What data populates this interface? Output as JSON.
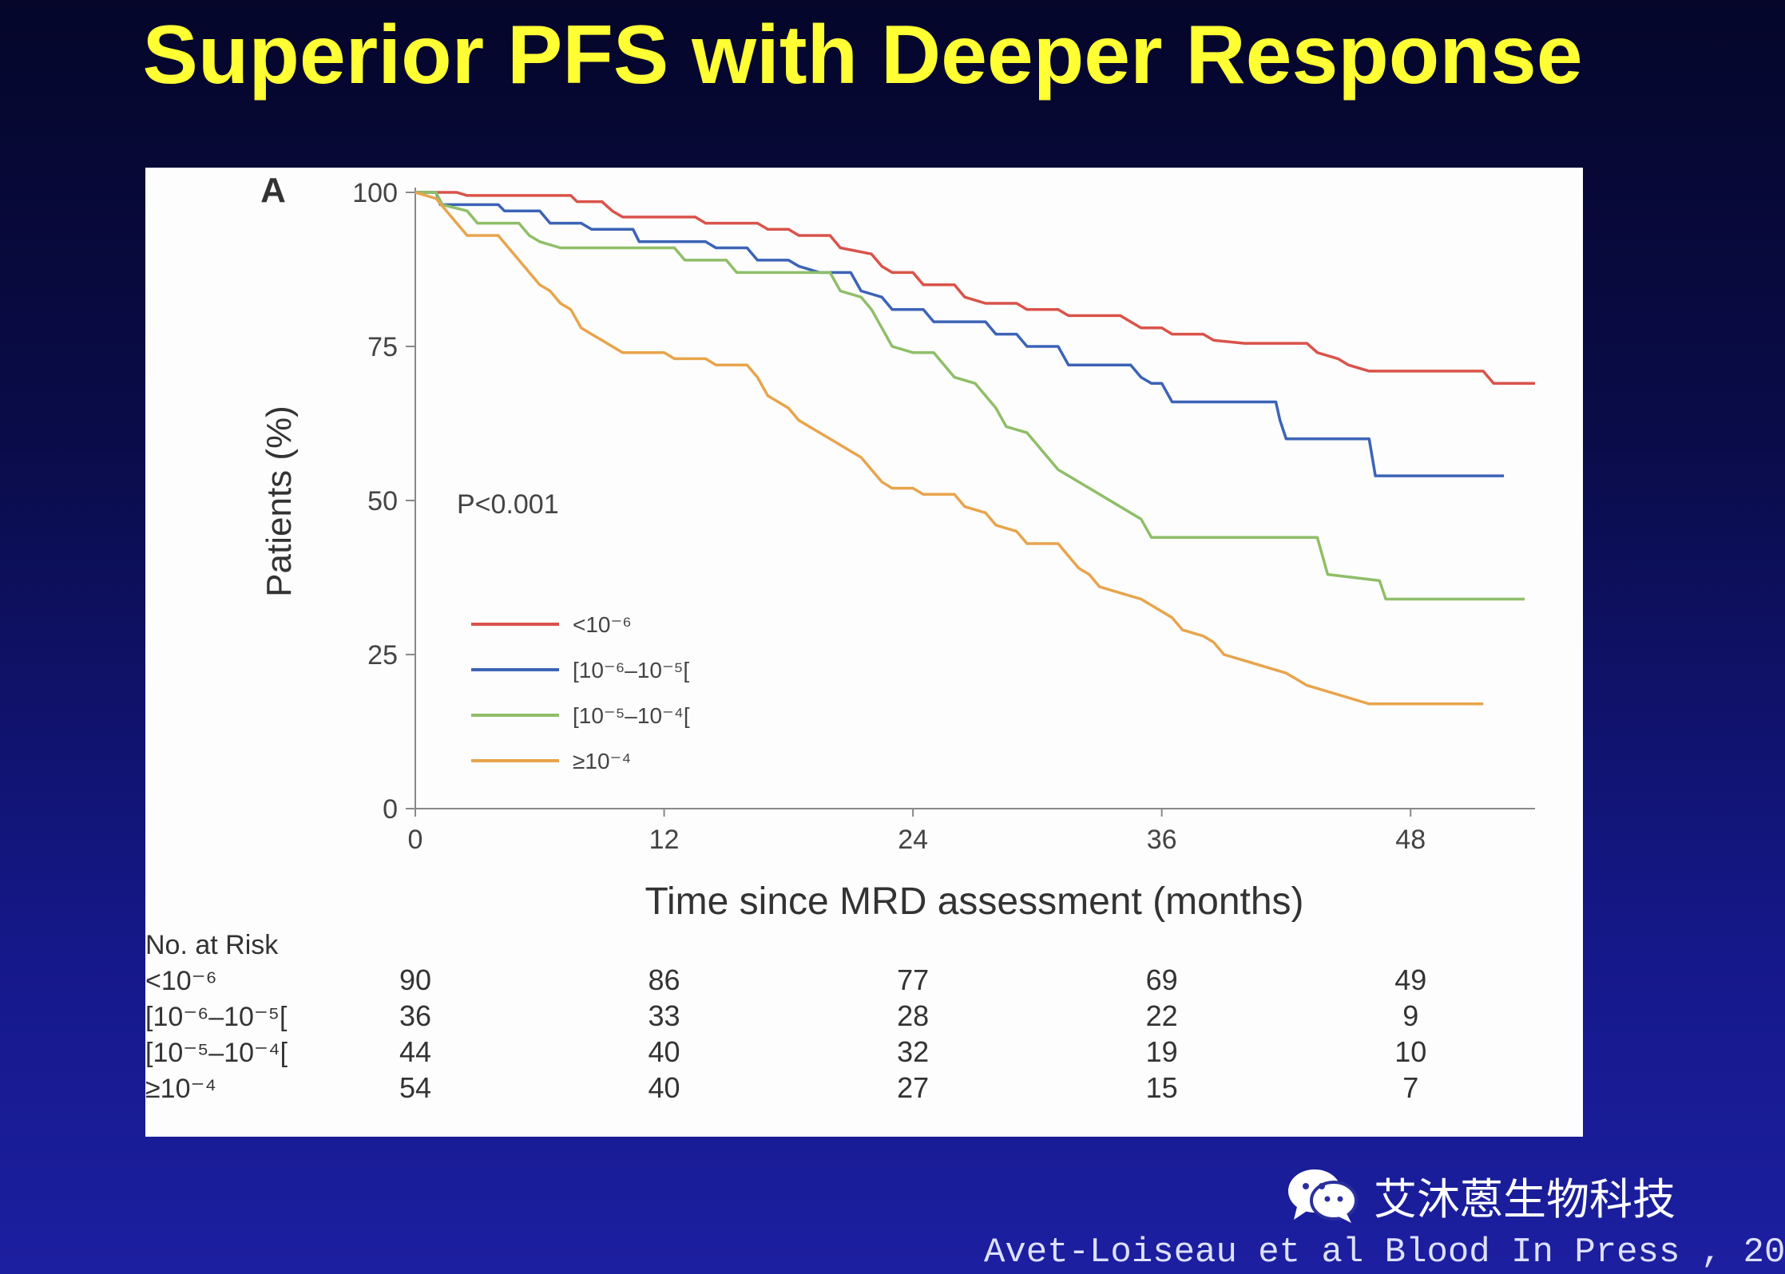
{
  "slide": {
    "title": "Superior PFS with Deeper Response",
    "watermark": "艾沐蒽生物科技",
    "citation": "Avet-Loiseau et al Blood In Press , 20"
  },
  "colors": {
    "red": "#d9534a",
    "blue": "#3c63b6",
    "green": "#8fbe68",
    "orange": "#e8a44c"
  },
  "chart_data": {
    "type": "line",
    "panel_label": "A",
    "xlabel": "Time since MRD assessment (months)",
    "ylabel": "Patients (%)",
    "xlim": [
      0,
      54
    ],
    "ylim": [
      0,
      100
    ],
    "xticks": [
      0,
      12,
      24,
      36,
      48
    ],
    "yticks": [
      0,
      25,
      50,
      75,
      100
    ],
    "annotation": "P<0.001",
    "legend_position": "center-left",
    "series": [
      {
        "name": "<10⁻⁶",
        "color": "red",
        "risk": [
          "90",
          "86",
          "77",
          "69",
          "49"
        ],
        "points": [
          [
            0,
            100
          ],
          [
            2,
            100
          ],
          [
            2.5,
            99.5
          ],
          [
            7.5,
            99.5
          ],
          [
            7.8,
            98.5
          ],
          [
            9,
            98.5
          ],
          [
            9.5,
            97
          ],
          [
            10,
            96
          ],
          [
            13.5,
            96
          ],
          [
            14,
            95
          ],
          [
            16.5,
            95
          ],
          [
            17,
            94
          ],
          [
            18,
            94
          ],
          [
            18.5,
            93
          ],
          [
            20,
            93
          ],
          [
            20.5,
            91
          ],
          [
            22,
            90
          ],
          [
            22.5,
            88
          ],
          [
            23,
            87
          ],
          [
            24,
            87
          ],
          [
            24.5,
            85
          ],
          [
            26,
            85
          ],
          [
            26.5,
            83
          ],
          [
            27.5,
            82
          ],
          [
            29,
            82
          ],
          [
            29.5,
            81
          ],
          [
            31,
            81
          ],
          [
            31.5,
            80
          ],
          [
            34,
            80
          ],
          [
            34.5,
            79
          ],
          [
            35,
            78
          ],
          [
            36,
            78
          ],
          [
            36.5,
            77
          ],
          [
            38,
            77
          ],
          [
            38.5,
            76
          ],
          [
            40,
            75.5
          ],
          [
            43,
            75.5
          ],
          [
            43.5,
            74
          ],
          [
            44.5,
            73
          ],
          [
            45,
            72
          ],
          [
            46,
            71
          ],
          [
            51.5,
            71
          ],
          [
            52,
            69
          ],
          [
            54,
            69
          ]
        ]
      },
      {
        "name": "[10⁻⁶–10⁻⁵[",
        "color": "blue",
        "risk": [
          "36",
          "33",
          "28",
          "22",
          "9"
        ],
        "points": [
          [
            0,
            100
          ],
          [
            1,
            100
          ],
          [
            1.2,
            98
          ],
          [
            4,
            98
          ],
          [
            4.3,
            97
          ],
          [
            6,
            97
          ],
          [
            6.5,
            95
          ],
          [
            8,
            95
          ],
          [
            8.5,
            94
          ],
          [
            10.5,
            94
          ],
          [
            10.8,
            92
          ],
          [
            14,
            92
          ],
          [
            14.5,
            91
          ],
          [
            16,
            91
          ],
          [
            16.5,
            89
          ],
          [
            18,
            89
          ],
          [
            18.5,
            88
          ],
          [
            19.5,
            87
          ],
          [
            21,
            87
          ],
          [
            21.5,
            84
          ],
          [
            22.5,
            83
          ],
          [
            23,
            81
          ],
          [
            24.5,
            81
          ],
          [
            25,
            79
          ],
          [
            27.5,
            79
          ],
          [
            28,
            77
          ],
          [
            29,
            77
          ],
          [
            29.5,
            75
          ],
          [
            31,
            75
          ],
          [
            31.5,
            72
          ],
          [
            34.5,
            72
          ],
          [
            35,
            70
          ],
          [
            35.5,
            69
          ],
          [
            36,
            69
          ],
          [
            36.5,
            66
          ],
          [
            41.5,
            66
          ],
          [
            41.7,
            63
          ],
          [
            42,
            60
          ],
          [
            46,
            60
          ],
          [
            46.3,
            54
          ],
          [
            52.5,
            54
          ]
        ]
      },
      {
        "name": "[10⁻⁵–10⁻⁴[",
        "color": "green",
        "risk": [
          "44",
          "40",
          "32",
          "19",
          "10"
        ],
        "points": [
          [
            0,
            100
          ],
          [
            1,
            100
          ],
          [
            1.3,
            98
          ],
          [
            2.5,
            97
          ],
          [
            3,
            95
          ],
          [
            5,
            95
          ],
          [
            5.5,
            93
          ],
          [
            6,
            92
          ],
          [
            7,
            91
          ],
          [
            12.5,
            91
          ],
          [
            13,
            89
          ],
          [
            15,
            89
          ],
          [
            15.5,
            87
          ],
          [
            20,
            87
          ],
          [
            20.5,
            84
          ],
          [
            21.5,
            83
          ],
          [
            22,
            81
          ],
          [
            22.5,
            78
          ],
          [
            23,
            75
          ],
          [
            24,
            74
          ],
          [
            25,
            74
          ],
          [
            25.5,
            72
          ],
          [
            26,
            70
          ],
          [
            27,
            69
          ],
          [
            27.5,
            67
          ],
          [
            28,
            65
          ],
          [
            28.5,
            62
          ],
          [
            29.5,
            61
          ],
          [
            30,
            59
          ],
          [
            30.5,
            57
          ],
          [
            31,
            55
          ],
          [
            32,
            53
          ],
          [
            33,
            51
          ],
          [
            34,
            49
          ],
          [
            35,
            47
          ],
          [
            35.5,
            44
          ],
          [
            43.5,
            44
          ],
          [
            44,
            38
          ],
          [
            46.5,
            37
          ],
          [
            46.8,
            34
          ],
          [
            53.5,
            34
          ]
        ]
      },
      {
        "name": "≥10⁻⁴",
        "color": "orange",
        "risk": [
          "54",
          "40",
          "27",
          "15",
          "7"
        ],
        "points": [
          [
            0,
            100
          ],
          [
            1,
            99
          ],
          [
            1.5,
            97
          ],
          [
            2,
            95
          ],
          [
            2.5,
            93
          ],
          [
            4,
            93
          ],
          [
            4.5,
            91
          ],
          [
            5,
            89
          ],
          [
            5.5,
            87
          ],
          [
            6,
            85
          ],
          [
            6.5,
            84
          ],
          [
            7,
            82
          ],
          [
            7.5,
            81
          ],
          [
            8,
            78
          ],
          [
            8.5,
            77
          ],
          [
            9,
            76
          ],
          [
            9.5,
            75
          ],
          [
            10,
            74
          ],
          [
            12,
            74
          ],
          [
            12.5,
            73
          ],
          [
            14,
            73
          ],
          [
            14.5,
            72
          ],
          [
            16,
            72
          ],
          [
            16.5,
            70
          ],
          [
            17,
            67
          ],
          [
            17.5,
            66
          ],
          [
            18,
            65
          ],
          [
            18.5,
            63
          ],
          [
            19,
            62
          ],
          [
            20,
            60
          ],
          [
            21,
            58
          ],
          [
            21.5,
            57
          ],
          [
            22,
            55
          ],
          [
            22.5,
            53
          ],
          [
            23,
            52
          ],
          [
            24,
            52
          ],
          [
            24.5,
            51
          ],
          [
            26,
            51
          ],
          [
            26.5,
            49
          ],
          [
            27.5,
            48
          ],
          [
            28,
            46
          ],
          [
            29,
            45
          ],
          [
            29.5,
            43
          ],
          [
            31,
            43
          ],
          [
            31.5,
            41
          ],
          [
            32,
            39
          ],
          [
            32.5,
            38
          ],
          [
            33,
            36
          ],
          [
            34,
            35
          ],
          [
            35,
            34
          ],
          [
            36,
            32
          ],
          [
            36.5,
            31
          ],
          [
            37,
            29
          ],
          [
            38,
            28
          ],
          [
            38.5,
            27
          ],
          [
            39,
            25
          ],
          [
            40,
            24
          ],
          [
            41,
            23
          ],
          [
            42,
            22
          ],
          [
            42.5,
            21
          ],
          [
            43,
            20
          ],
          [
            44,
            19
          ],
          [
            45,
            18
          ],
          [
            46,
            17
          ],
          [
            51.5,
            17
          ]
        ]
      }
    ],
    "risk_table": {
      "header": "No. at Risk",
      "times": [
        0,
        12,
        24,
        36,
        48
      ],
      "row_labels": [
        "<10⁻⁶",
        "[10⁻⁶–10⁻⁵[",
        "[10⁻⁵–10⁻⁴[",
        "≥10⁻⁴"
      ]
    }
  }
}
